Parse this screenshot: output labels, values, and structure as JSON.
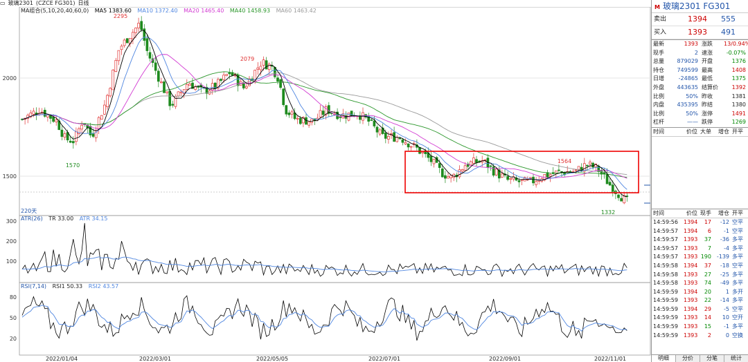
{
  "title": {
    "symbol": "玻璃2301",
    "exch": "(CZCE FG301)",
    "period": "日线"
  },
  "ma_legend": {
    "label": "MA组合(5,10,20,40,60,0)",
    "ma5": "MA5 1383.60",
    "ma10": "MA10 1372.40",
    "ma20": "MA20 1465.40",
    "ma40": "MA40 1458.93",
    "ma60": "MA60 1463.42"
  },
  "atr_legend": {
    "label": "ATR(26)",
    "tr": "TR 33.00",
    "atr": "ATR 34.15"
  },
  "rsi_legend": {
    "label": "RSI(7,14)",
    "rsi1": "RSI1 50.33",
    "rsi2": "RSI2 43.57"
  },
  "price_axis": [
    "2000",
    "1500"
  ],
  "atr_axis": [
    "300",
    "200",
    "100"
  ],
  "rsi_axis": [
    "80",
    "50",
    "20"
  ],
  "annotations": {
    "high1": "2295",
    "low1": "1570",
    "high2": "2079",
    "high3": "1564",
    "low2": "1332",
    "days": "220天"
  },
  "dates": [
    "2022/01/04",
    "2022/03/01",
    "2022/05/05",
    "2022/07/01",
    "2022/09/01",
    "2022/11/01"
  ],
  "colors": {
    "up": "#e03030",
    "down": "#1e8a1e",
    "ma5": "#000000",
    "ma10": "#4f86e0",
    "ma20": "#d23bd2",
    "ma40": "#2a962a",
    "ma60": "#999999",
    "box": "#ee0000"
  },
  "side": {
    "title": "玻璃2301  FG301",
    "sell_label": "卖出",
    "sell_price": "1394",
    "sell_vol": "555",
    "buy_label": "买入",
    "buy_price": "1393",
    "buy_vol": "491",
    "stats": [
      [
        "最新",
        "1393",
        "red",
        "涨跌",
        "13/0.94%",
        "red"
      ],
      [
        "现手",
        "2",
        "blue",
        "速涨",
        "-0.07%",
        "green"
      ],
      [
        "总量",
        "879029",
        "blue",
        "开盘",
        "1376",
        "green"
      ],
      [
        "持仓",
        "749599",
        "blue",
        "最高",
        "1408",
        "red"
      ],
      [
        "日增",
        "-24865",
        "blue",
        "最低",
        "1375",
        "green"
      ],
      [
        "外盘",
        "443635",
        "blue",
        "结算价",
        "1392",
        "red"
      ],
      [
        "比例",
        "50%",
        "blue",
        "昨收",
        "1381",
        ""
      ],
      [
        "内盘",
        "435395",
        "blue",
        "昨结",
        "1380",
        ""
      ],
      [
        "比例",
        "50%",
        "blue",
        "涨停",
        "1491",
        "red"
      ],
      [
        "杠杆",
        "——",
        "blue",
        "跌停",
        "1269",
        "green"
      ]
    ],
    "hdr1": [
      "时间",
      "价位",
      "大单",
      "增仓",
      "开平"
    ],
    "hdr2": [
      "时间",
      "价位",
      "现手",
      "增仓",
      "开平"
    ],
    "trades": [
      [
        "14:59:56",
        "1394",
        "17",
        "-12",
        "空平"
      ],
      [
        "14:59:57",
        "1394",
        "6",
        "-1",
        "空平"
      ],
      [
        "14:59:57",
        "1393",
        "37",
        "-36",
        "多平"
      ],
      [
        "14:59:57",
        "1393",
        "7",
        "-4",
        "多平"
      ],
      [
        "14:59:57",
        "1393",
        "190",
        "-139",
        "多平"
      ],
      [
        "14:59:58",
        "1394",
        "37",
        "-18",
        "空平"
      ],
      [
        "14:59:58",
        "1393",
        "27",
        "-25",
        "多平"
      ],
      [
        "14:59:58",
        "1393",
        "74",
        "-49",
        "多平"
      ],
      [
        "14:59:59",
        "1394",
        "20",
        "1",
        "多开"
      ],
      [
        "14:59:59",
        "1393",
        "22",
        "-14",
        "多平"
      ],
      [
        "14:59:59",
        "1394",
        "29",
        "-5",
        "空平"
      ],
      [
        "14:59:59",
        "1393",
        "14",
        "10",
        "空开"
      ],
      [
        "14:59:59",
        "1393",
        "15",
        "-1",
        "多平"
      ],
      [
        "14:59:59",
        "1393",
        "2",
        "0",
        "空换"
      ]
    ],
    "tabs": [
      "明细",
      "分价",
      "分笔",
      "统计"
    ]
  }
}
